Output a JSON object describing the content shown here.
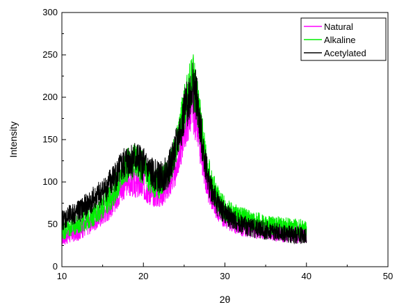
{
  "chart_data": {
    "type": "line",
    "title": "",
    "xlabel": "2θ",
    "ylabel": "Intensity",
    "xlim": [
      10,
      50
    ],
    "ylim": [
      0,
      300
    ],
    "xticks": [
      "10",
      "20",
      "30",
      "40",
      "50"
    ],
    "yticks": [
      "0",
      "50",
      "100",
      "150",
      "200",
      "250",
      "300"
    ],
    "grid": false,
    "legend_position": "top-right",
    "series": [
      {
        "name": "Natural",
        "color": "#ff00ff",
        "x": [
          10,
          11,
          12,
          13,
          14,
          15,
          16,
          17,
          18,
          19,
          20,
          21,
          22,
          23,
          24,
          25,
          26,
          26.5,
          27,
          28,
          29,
          30,
          31,
          32,
          33,
          34,
          35,
          36,
          37,
          38,
          39,
          40
        ],
        "y": [
          35,
          38,
          42,
          48,
          55,
          62,
          72,
          88,
          102,
          98,
          95,
          88,
          85,
          95,
          115,
          160,
          190,
          170,
          140,
          90,
          70,
          58,
          52,
          48,
          46,
          44,
          43,
          41,
          40,
          39,
          38,
          38
        ]
      },
      {
        "name": "Alkaline",
        "color": "#00ee00",
        "x": [
          10,
          11,
          12,
          13,
          14,
          15,
          16,
          17,
          18,
          19,
          20,
          21,
          22,
          23,
          24,
          25,
          26,
          26.5,
          27,
          28,
          29,
          30,
          31,
          32,
          33,
          34,
          35,
          36,
          37,
          38,
          39,
          40
        ],
        "y": [
          42,
          46,
          50,
          55,
          62,
          70,
          82,
          100,
          120,
          125,
          115,
          100,
          98,
          110,
          140,
          185,
          225,
          205,
          170,
          110,
          82,
          68,
          62,
          58,
          55,
          52,
          50,
          48,
          47,
          46,
          45,
          44
        ]
      },
      {
        "name": "Acetylated",
        "color": "#000000",
        "x": [
          10,
          11,
          12,
          13,
          14,
          15,
          16,
          17,
          18,
          19,
          20,
          21,
          22,
          23,
          24,
          25,
          26,
          26.5,
          27,
          28,
          29,
          30,
          31,
          32,
          33,
          34,
          35,
          36,
          37,
          38,
          39,
          40
        ],
        "y": [
          55,
          60,
          65,
          72,
          80,
          88,
          100,
          112,
          125,
          128,
          120,
          110,
          105,
          112,
          140,
          180,
          215,
          200,
          160,
          100,
          75,
          62,
          55,
          50,
          47,
          45,
          43,
          41,
          39,
          38,
          37,
          36
        ]
      }
    ]
  }
}
